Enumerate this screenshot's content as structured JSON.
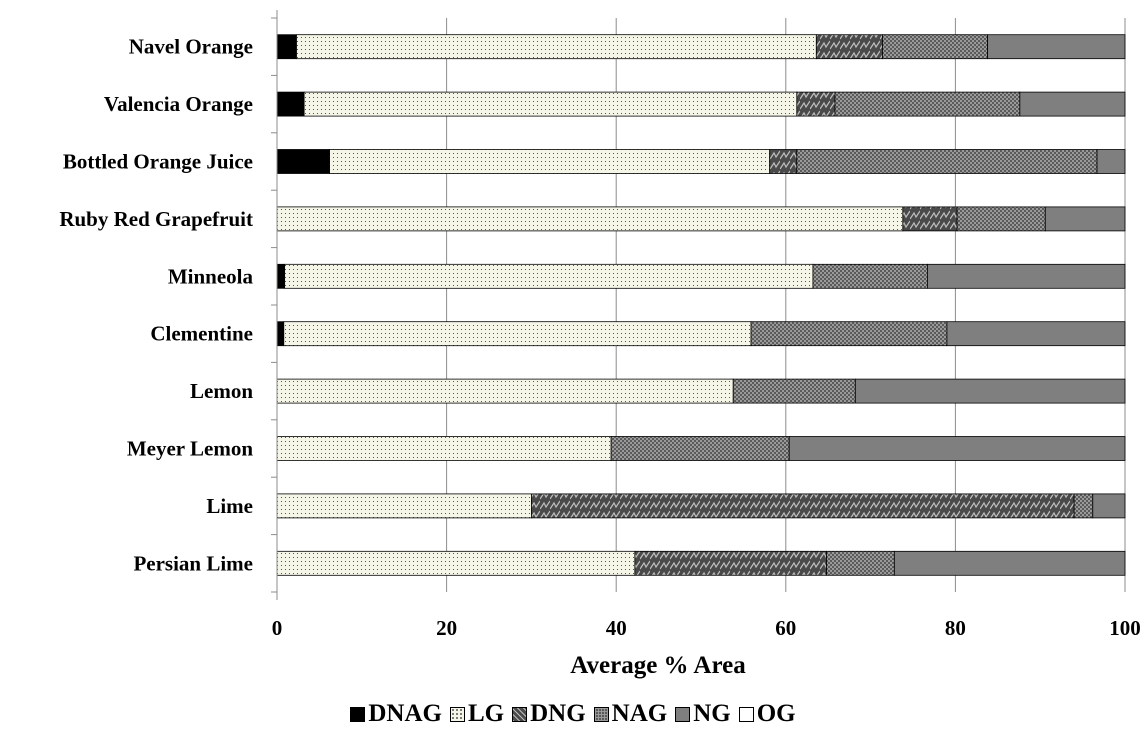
{
  "chart_data": {
    "type": "bar",
    "orientation": "horizontal",
    "stacked": true,
    "categories": [
      "Navel Orange",
      "Valencia Orange",
      "Bottled Orange Juice",
      "Ruby Red Grapefruit",
      "Minneola",
      "Clementine",
      "Lemon",
      "Meyer Lemon",
      "Lime",
      "Persian Lime"
    ],
    "series": [
      {
        "name": "DNAG",
        "values": [
          2.3,
          3.2,
          6.2,
          0,
          0.9,
          0.8,
          0,
          0,
          0,
          0
        ],
        "color": "#000000",
        "pattern": "solid"
      },
      {
        "name": "LG",
        "values": [
          61.3,
          58.1,
          51.9,
          73.8,
          62.3,
          55.1,
          53.8,
          39.4,
          30.0,
          42.2
        ],
        "color": "#f5f5e8",
        "pattern": "dots"
      },
      {
        "name": "DNG",
        "values": [
          7.8,
          4.5,
          3.2,
          6.4,
          0,
          0,
          0,
          0,
          64.0,
          22.6
        ],
        "color": "#505050",
        "pattern": "zigzag"
      },
      {
        "name": "NAG",
        "values": [
          12.4,
          21.8,
          35.4,
          10.4,
          13.5,
          23.1,
          14.4,
          21.0,
          2.2,
          8.0
        ],
        "color": "#505050",
        "pattern": "checker-dots"
      },
      {
        "name": "NG",
        "values": [
          16.2,
          12.4,
          3.3,
          9.4,
          23.3,
          21.0,
          31.8,
          39.6,
          3.8,
          27.2
        ],
        "color": "#7f7f7f",
        "pattern": "solid"
      },
      {
        "name": "OG",
        "values": [
          0,
          0,
          0,
          0,
          0,
          0,
          0,
          0,
          0,
          0
        ],
        "color": "#ffffff",
        "pattern": "solid"
      }
    ],
    "xlabel": "Average % Area",
    "ylabel": "",
    "xlim": [
      0,
      100
    ],
    "xticks": [
      0,
      20,
      40,
      60,
      80,
      100
    ],
    "grid": "vertical",
    "legend_position": "bottom"
  }
}
